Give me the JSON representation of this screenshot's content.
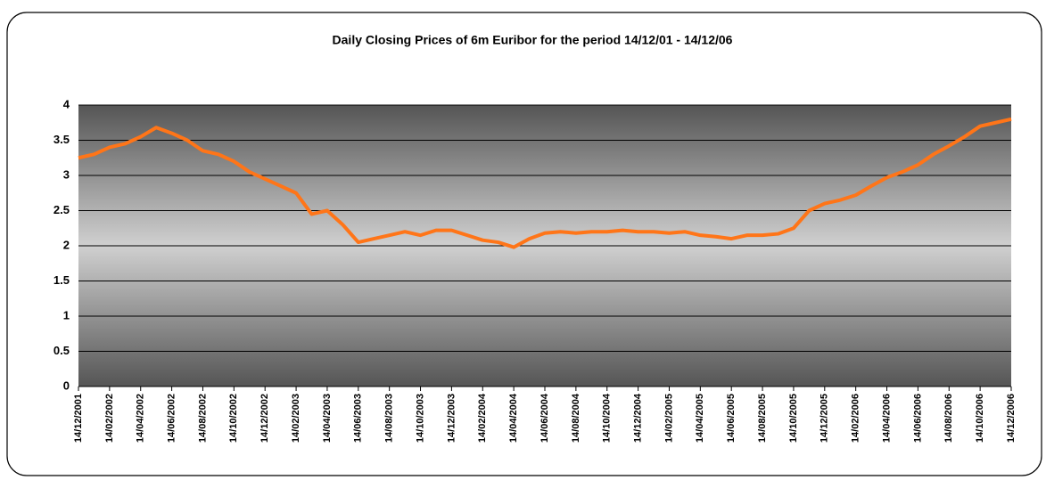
{
  "chart_data": {
    "type": "line",
    "title": "Daily Closing Prices of 6m Euribor for the period 14/12/01 - 14/12/06",
    "categories": [
      "14/12/2001",
      null,
      "14/02/2002",
      null,
      "14/04/2002",
      null,
      "14/06/2002",
      null,
      "14/08/2002",
      null,
      "14/10/2002",
      null,
      "14/12/2002",
      null,
      "14/02/2003",
      null,
      "14/04/2003",
      null,
      "14/06/2003",
      null,
      "14/08/2003",
      null,
      "14/10/2003",
      null,
      "14/12/2003",
      null,
      "14/02/2004",
      null,
      "14/04/2004",
      null,
      "14/06/2004",
      null,
      "14/08/2004",
      null,
      "14/10/2004",
      null,
      "14/12/2004",
      null,
      "14/02/2005",
      null,
      "14/04/2005",
      null,
      "14/06/2005",
      null,
      "14/08/2005",
      null,
      "14/10/2005",
      null,
      "14/12/2005",
      null,
      "14/02/2006",
      null,
      "14/04/2006",
      null,
      "14/06/2006",
      null,
      "14/08/2006",
      null,
      "14/10/2006",
      null,
      "14/12/2006"
    ],
    "series": [
      {
        "name": "6m Euribor",
        "color": "#ff7518",
        "values": [
          3.25,
          3.3,
          3.4,
          3.45,
          3.55,
          3.68,
          3.6,
          3.5,
          3.35,
          3.3,
          3.2,
          3.05,
          2.95,
          2.85,
          2.75,
          2.45,
          2.5,
          2.3,
          2.05,
          2.1,
          2.15,
          2.2,
          2.15,
          2.22,
          2.22,
          2.15,
          2.08,
          2.05,
          1.98,
          2.1,
          2.18,
          2.2,
          2.18,
          2.2,
          2.2,
          2.22,
          2.2,
          2.2,
          2.18,
          2.2,
          2.15,
          2.13,
          2.1,
          2.15,
          2.15,
          2.17,
          2.25,
          2.5,
          2.6,
          2.65,
          2.72,
          2.85,
          2.97,
          3.05,
          3.15,
          3.3,
          3.42,
          3.55,
          3.7,
          3.75,
          3.8
        ]
      }
    ],
    "ylim": [
      0,
      4
    ],
    "yticks": [
      0,
      0.5,
      1,
      1.5,
      2,
      2.5,
      3,
      3.5,
      4
    ],
    "grid": true
  }
}
